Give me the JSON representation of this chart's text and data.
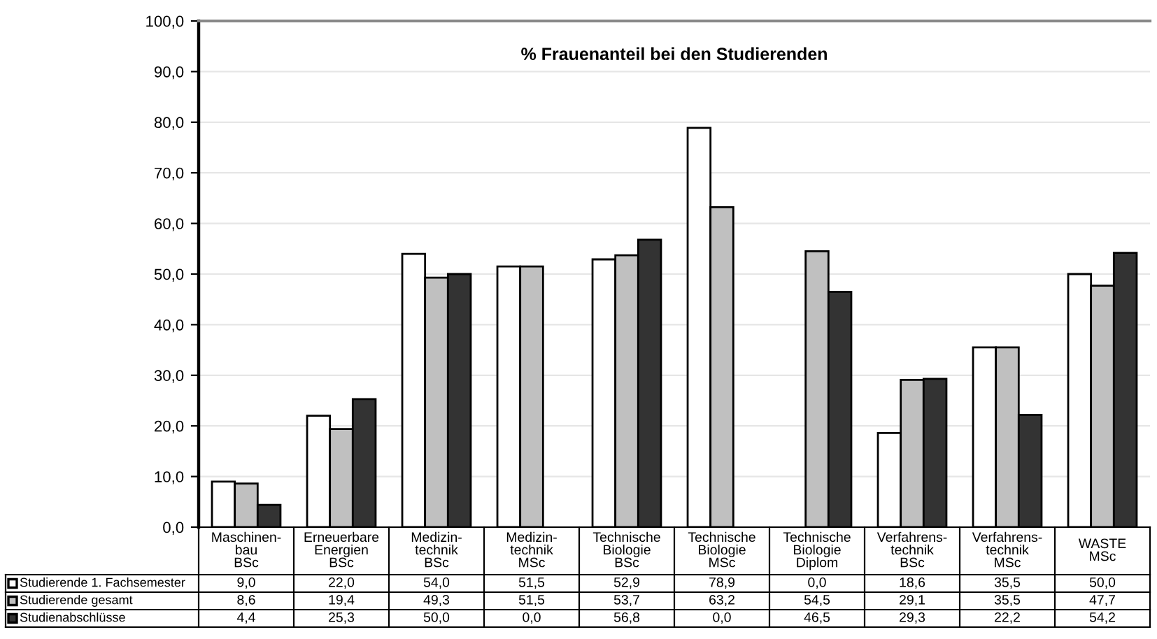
{
  "chart_data": {
    "type": "bar",
    "title": "% Frauenanteil bei den Studierenden",
    "categories": [
      "Maschinen-\nbau\nBSc",
      "Erneuerbare\nEnergien\nBSc",
      "Medizin-\ntechnik\nBSc",
      "Medizin-\ntechnik\nMSc",
      "Technische\nBiologie\nBSc",
      "Technische\nBiologie\nMSc",
      "Technische\nBiologie\nDiplom",
      "Verfahrens-\ntechnik\nBSc",
      "Verfahrens-\ntechnik\nMSc",
      "WASTE\nMSc"
    ],
    "series": [
      {
        "name": "Studierende 1. Fachsemester",
        "color": "#ffffff",
        "values": [
          9.0,
          22.0,
          54.0,
          51.5,
          52.9,
          78.9,
          0.0,
          18.6,
          35.5,
          50.0
        ],
        "value_labels": [
          "9,0",
          "22,0",
          "54,0",
          "51,5",
          "52,9",
          "78,9",
          "0,0",
          "18,6",
          "35,5",
          "50,0"
        ]
      },
      {
        "name": "Studierende gesamt",
        "color": "#c0c0c0",
        "values": [
          8.6,
          19.4,
          49.3,
          51.5,
          53.7,
          63.2,
          54.5,
          29.1,
          35.5,
          47.7
        ],
        "value_labels": [
          "8,6",
          "19,4",
          "49,3",
          "51,5",
          "53,7",
          "63,2",
          "54,5",
          "29,1",
          "35,5",
          "47,7"
        ]
      },
      {
        "name": "Studienabschlüsse",
        "color": "#333333",
        "values": [
          4.4,
          25.3,
          50.0,
          0.0,
          56.8,
          0.0,
          46.5,
          29.3,
          22.2,
          54.2
        ],
        "value_labels": [
          "4,4",
          "25,3",
          "50,0",
          "0,0",
          "56,8",
          "0,0",
          "46,5",
          "29,3",
          "22,2",
          "54,2"
        ]
      }
    ],
    "ylim": [
      0,
      100
    ],
    "yticks": [
      {
        "value": 0,
        "label": "0,0"
      },
      {
        "value": 10,
        "label": "10,0"
      },
      {
        "value": 20,
        "label": "20,0"
      },
      {
        "value": 30,
        "label": "30,0"
      },
      {
        "value": 40,
        "label": "40,0"
      },
      {
        "value": 50,
        "label": "50,0"
      },
      {
        "value": 60,
        "label": "60,0"
      },
      {
        "value": 70,
        "label": "70,0"
      },
      {
        "value": 80,
        "label": "80,0"
      },
      {
        "value": 90,
        "label": "90,0"
      },
      {
        "value": 100,
        "label": "100,0"
      }
    ],
    "grid": "y",
    "legend": "bottom left"
  }
}
